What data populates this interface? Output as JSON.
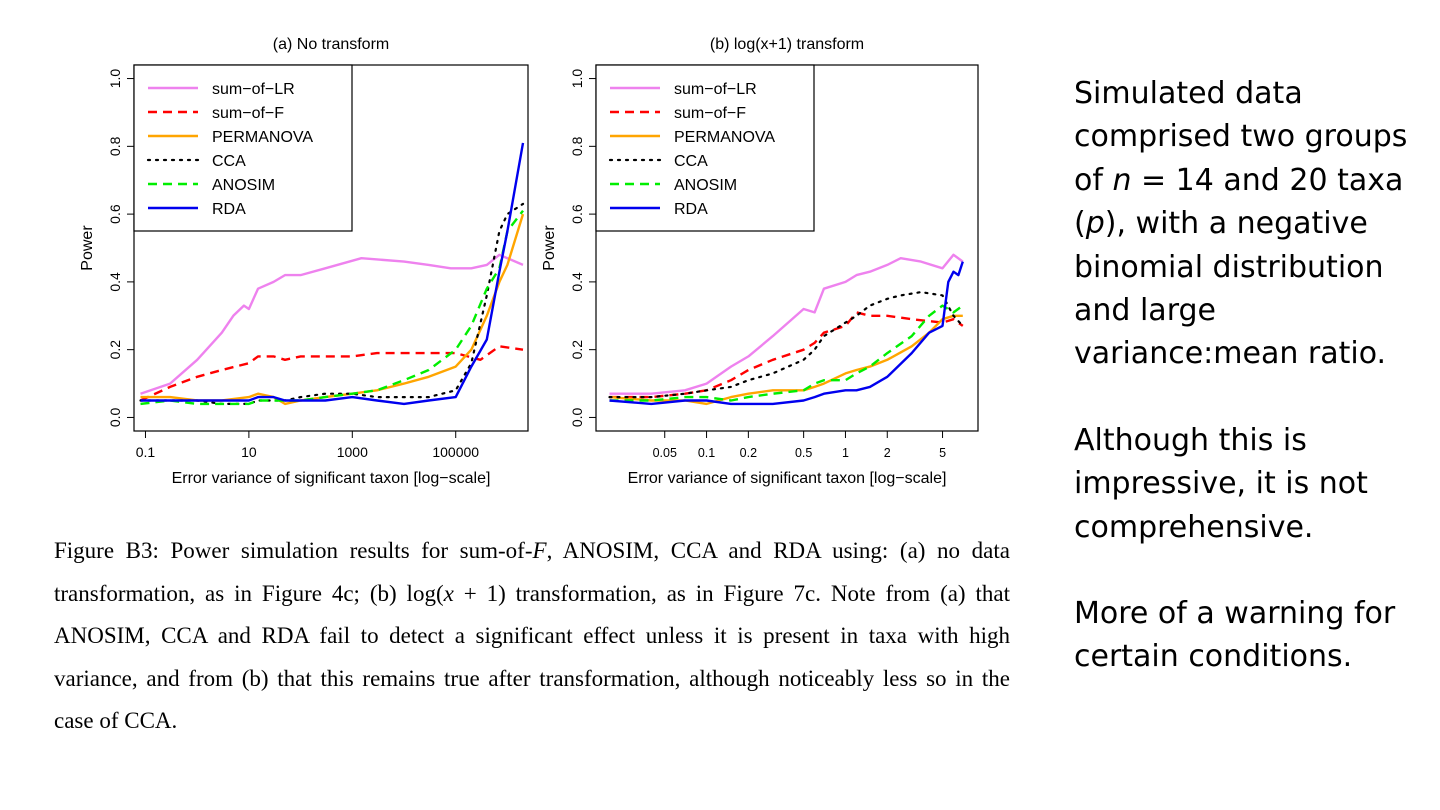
{
  "chart_data": [
    {
      "type": "line",
      "title": "(a) No transform",
      "xlabel": "Error variance of significant taxon [log−scale]",
      "ylabel": "Power",
      "xscale": "log",
      "xlim": [
        0.06,
        2500000
      ],
      "ylim": [
        0.0,
        1.0
      ],
      "xticks": [
        0.1,
        10,
        1000,
        100000
      ],
      "xtick_labels": [
        "0.1",
        "10",
        "1000",
        "100000"
      ],
      "yticks": [
        0.0,
        0.2,
        0.4,
        0.6,
        0.8,
        1.0
      ],
      "ytick_labels": [
        "0.0",
        "0.2",
        "0.4",
        "0.6",
        "0.8",
        "1.0"
      ],
      "legend_position": "top-left",
      "grid": false,
      "series": [
        {
          "name": "sum−of−LR",
          "color": "#ee82ee",
          "dash": "solid",
          "x": [
            0.08,
            0.3,
            1,
            3,
            5,
            8,
            10,
            15,
            30,
            50,
            100,
            300,
            1500,
            10000,
            30000,
            80000,
            200000,
            400000,
            700000,
            2000000
          ],
          "y": [
            0.07,
            0.1,
            0.17,
            0.25,
            0.3,
            0.33,
            0.32,
            0.38,
            0.4,
            0.42,
            0.42,
            0.44,
            0.47,
            0.46,
            0.45,
            0.44,
            0.44,
            0.45,
            0.48,
            0.45
          ]
        },
        {
          "name": "sum−of−F",
          "color": "#ff0000",
          "dash": "dashed",
          "x": [
            0.08,
            0.3,
            1,
            3,
            10,
            15,
            30,
            50,
            100,
            300,
            1000,
            3000,
            10000,
            30000,
            100000,
            300000,
            700000,
            2000000
          ],
          "y": [
            0.05,
            0.09,
            0.12,
            0.14,
            0.16,
            0.18,
            0.18,
            0.17,
            0.18,
            0.18,
            0.18,
            0.19,
            0.19,
            0.19,
            0.19,
            0.17,
            0.21,
            0.2
          ]
        },
        {
          "name": "PERMANOVA",
          "color": "#ffa500",
          "dash": "solid",
          "x": [
            0.08,
            0.3,
            1,
            3,
            10,
            15,
            30,
            50,
            100,
            300,
            1000,
            3000,
            10000,
            30000,
            100000,
            200000,
            400000,
            700000,
            1000000,
            2000000
          ],
          "y": [
            0.06,
            0.06,
            0.05,
            0.05,
            0.06,
            0.07,
            0.06,
            0.04,
            0.05,
            0.06,
            0.07,
            0.08,
            0.1,
            0.12,
            0.15,
            0.2,
            0.3,
            0.4,
            0.45,
            0.6
          ]
        },
        {
          "name": "CCA",
          "color": "#000000",
          "dash": "dotted",
          "x": [
            0.08,
            0.3,
            1,
            3,
            10,
            15,
            30,
            50,
            100,
            300,
            1000,
            3000,
            10000,
            30000,
            100000,
            200000,
            400000,
            700000,
            1000000,
            2000000
          ],
          "y": [
            0.05,
            0.05,
            0.05,
            0.04,
            0.04,
            0.05,
            0.05,
            0.05,
            0.06,
            0.07,
            0.07,
            0.06,
            0.06,
            0.06,
            0.08,
            0.16,
            0.36,
            0.55,
            0.6,
            0.63
          ]
        },
        {
          "name": "ANOSIM",
          "color": "#00ee00",
          "dash": "dashed",
          "x": [
            0.08,
            0.3,
            1,
            3,
            10,
            15,
            30,
            50,
            100,
            300,
            1000,
            3000,
            10000,
            30000,
            100000,
            200000,
            400000,
            700000,
            1000000,
            2000000
          ],
          "y": [
            0.04,
            0.05,
            0.04,
            0.04,
            0.04,
            0.05,
            0.05,
            0.05,
            0.05,
            0.06,
            0.07,
            0.08,
            0.11,
            0.14,
            0.2,
            0.27,
            0.38,
            0.44,
            0.55,
            0.61
          ]
        },
        {
          "name": "RDA",
          "color": "#0000ee",
          "dash": "solid",
          "x": [
            0.08,
            0.3,
            1,
            3,
            10,
            15,
            30,
            50,
            100,
            300,
            1000,
            3000,
            10000,
            30000,
            100000,
            200000,
            400000,
            700000,
            1000000,
            2000000
          ],
          "y": [
            0.05,
            0.05,
            0.05,
            0.05,
            0.05,
            0.06,
            0.06,
            0.05,
            0.05,
            0.05,
            0.06,
            0.05,
            0.04,
            0.05,
            0.06,
            0.15,
            0.23,
            0.43,
            0.55,
            0.81
          ]
        }
      ]
    },
    {
      "type": "line",
      "title": "(b) log(x+1) transform",
      "xlabel": "Error variance of significant taxon [log−scale]",
      "ylabel": "Power",
      "xscale": "log",
      "xlim": [
        0.016,
        9.0
      ],
      "ylim": [
        0.0,
        1.0
      ],
      "xticks": [
        0.05,
        0.1,
        0.2,
        0.5,
        1,
        2,
        5
      ],
      "xtick_labels": [
        "0.05",
        "0.1",
        "0.2",
        "0.5",
        "1",
        "2",
        "5"
      ],
      "yticks": [
        0.0,
        0.2,
        0.4,
        0.6,
        0.8,
        1.0
      ],
      "ytick_labels": [
        "0.0",
        "0.2",
        "0.4",
        "0.6",
        "0.8",
        "1.0"
      ],
      "legend_position": "top-left",
      "grid": false,
      "series": [
        {
          "name": "sum−of−LR",
          "color": "#ee82ee",
          "dash": "solid",
          "x": [
            0.02,
            0.04,
            0.07,
            0.1,
            0.15,
            0.2,
            0.3,
            0.5,
            0.6,
            0.7,
            1.0,
            1.2,
            1.5,
            2.0,
            2.5,
            3.5,
            5.0,
            6.0,
            7.0
          ],
          "y": [
            0.07,
            0.07,
            0.08,
            0.1,
            0.15,
            0.18,
            0.24,
            0.32,
            0.31,
            0.38,
            0.4,
            0.42,
            0.43,
            0.45,
            0.47,
            0.46,
            0.44,
            0.48,
            0.46
          ]
        },
        {
          "name": "sum−of−F",
          "color": "#ff0000",
          "dash": "dashed",
          "x": [
            0.02,
            0.04,
            0.07,
            0.1,
            0.15,
            0.2,
            0.3,
            0.5,
            0.6,
            0.7,
            1.0,
            1.2,
            1.5,
            2.0,
            3.0,
            5.0,
            6.0,
            7.0
          ],
          "y": [
            0.06,
            0.06,
            0.07,
            0.08,
            0.11,
            0.14,
            0.17,
            0.2,
            0.22,
            0.25,
            0.27,
            0.31,
            0.3,
            0.3,
            0.29,
            0.28,
            0.29,
            0.27
          ]
        },
        {
          "name": "PERMANOVA",
          "color": "#ffa500",
          "dash": "solid",
          "x": [
            0.02,
            0.04,
            0.07,
            0.1,
            0.15,
            0.2,
            0.3,
            0.5,
            0.6,
            0.7,
            1.0,
            1.2,
            1.5,
            2.0,
            3.0,
            4.0,
            5.0,
            6.0,
            7.0
          ],
          "y": [
            0.06,
            0.05,
            0.05,
            0.04,
            0.06,
            0.07,
            0.08,
            0.08,
            0.09,
            0.1,
            0.13,
            0.14,
            0.15,
            0.17,
            0.21,
            0.25,
            0.29,
            0.3,
            0.3
          ]
        },
        {
          "name": "CCA",
          "color": "#000000",
          "dash": "dotted",
          "x": [
            0.02,
            0.04,
            0.07,
            0.1,
            0.15,
            0.2,
            0.3,
            0.5,
            0.6,
            0.7,
            1.0,
            1.2,
            1.5,
            2.0,
            2.5,
            3.5,
            5.0,
            6.0,
            7.0
          ],
          "y": [
            0.06,
            0.06,
            0.07,
            0.08,
            0.09,
            0.11,
            0.13,
            0.17,
            0.2,
            0.24,
            0.28,
            0.3,
            0.33,
            0.35,
            0.36,
            0.37,
            0.36,
            0.3,
            0.27
          ]
        },
        {
          "name": "ANOSIM",
          "color": "#00ee00",
          "dash": "dashed",
          "x": [
            0.02,
            0.04,
            0.07,
            0.1,
            0.15,
            0.2,
            0.3,
            0.5,
            0.6,
            0.7,
            1.0,
            1.2,
            1.5,
            2.0,
            3.0,
            4.0,
            5.0,
            6.0,
            7.0
          ],
          "y": [
            0.05,
            0.05,
            0.06,
            0.06,
            0.05,
            0.06,
            0.07,
            0.08,
            0.1,
            0.11,
            0.11,
            0.13,
            0.15,
            0.19,
            0.24,
            0.3,
            0.33,
            0.31,
            0.33
          ]
        },
        {
          "name": "RDA",
          "color": "#0000ee",
          "dash": "solid",
          "x": [
            0.02,
            0.04,
            0.07,
            0.1,
            0.15,
            0.2,
            0.3,
            0.5,
            0.6,
            0.7,
            1.0,
            1.2,
            1.5,
            2.0,
            3.0,
            4.0,
            5.0,
            5.5,
            6.0,
            6.5,
            7.0
          ],
          "y": [
            0.05,
            0.04,
            0.05,
            0.05,
            0.04,
            0.04,
            0.04,
            0.05,
            0.06,
            0.07,
            0.08,
            0.08,
            0.09,
            0.12,
            0.19,
            0.25,
            0.27,
            0.4,
            0.43,
            0.42,
            0.46
          ]
        }
      ]
    }
  ],
  "caption": {
    "part1": "Figure B3: Power simulation results for sum-of-",
    "f_symbol": "F",
    "part2": ", ANOSIM, CCA and RDA using: (a) no data transformation, as in Figure 4c; (b) log(",
    "x_symbol": "x",
    "part3": " + 1) transformation, as in Figure 7c. Note from (a) that ANOSIM, CCA and RDA fail to detect a significant effect unless it is present in taxa with high variance, and from (b) that this remains true after transformation, although noticeably less so in the case of CCA."
  },
  "side_text": {
    "para1_a": "Simulated data comprised two groups of ",
    "para1_n": "n",
    "para1_b": " = 14 and 20 taxa (",
    "para1_p": "p",
    "para1_c": "), with a negative binomial distribution and large variance:mean ratio.",
    "para2": "Although this is impressive, it is not comprehensive.",
    "para3": "More of a warning for certain conditions."
  }
}
